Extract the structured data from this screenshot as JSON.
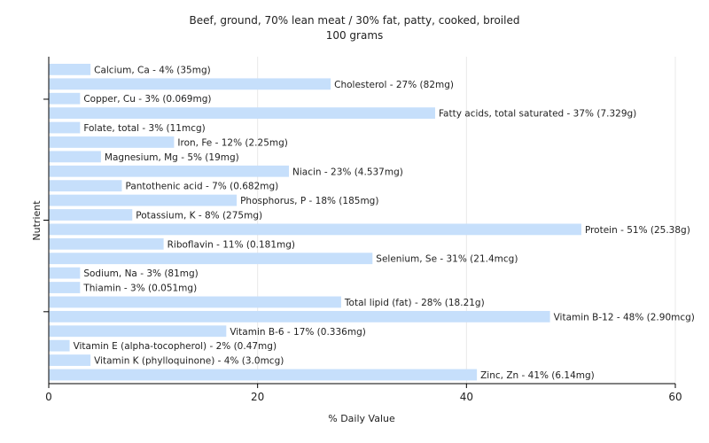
{
  "chart_data": {
    "type": "bar",
    "orientation": "horizontal",
    "title": "Beef, ground, 70% lean meat / 30% fat, patty, cooked, broiled",
    "subtitle": "100 grams",
    "xlabel": "% Daily Value",
    "ylabel": "Nutrient",
    "xlim": [
      0,
      60
    ],
    "xticks": [
      0,
      20,
      40,
      60
    ],
    "grid": true,
    "bar_color": "#c6dffb",
    "categories": [
      "Calcium, Ca",
      "Cholesterol",
      "Copper, Cu",
      "Fatty acids, total saturated",
      "Folate, total",
      "Iron, Fe",
      "Magnesium, Mg",
      "Niacin",
      "Pantothenic acid",
      "Phosphorus, P",
      "Potassium, K",
      "Protein",
      "Riboflavin",
      "Selenium, Se",
      "Sodium, Na",
      "Thiamin",
      "Total lipid (fat)",
      "Vitamin B-12",
      "Vitamin B-6",
      "Vitamin E (alpha-tocopherol)",
      "Vitamin K (phylloquinone)",
      "Zinc, Zn"
    ],
    "values": [
      4,
      27,
      3,
      37,
      3,
      12,
      5,
      23,
      7,
      18,
      8,
      51,
      11,
      31,
      3,
      3,
      28,
      48,
      17,
      2,
      4,
      41
    ],
    "labels": [
      "Calcium, Ca - 4% (35mg)",
      "Cholesterol - 27% (82mg)",
      "Copper, Cu - 3% (0.069mg)",
      "Fatty acids, total saturated - 37% (7.329g)",
      "Folate, total - 3% (11mcg)",
      "Iron, Fe - 12% (2.25mg)",
      "Magnesium, Mg - 5% (19mg)",
      "Niacin - 23% (4.537mg)",
      "Pantothenic acid - 7% (0.682mg)",
      "Phosphorus, P - 18% (185mg)",
      "Potassium, K - 8% (275mg)",
      "Protein - 51% (25.38g)",
      "Riboflavin - 11% (0.181mg)",
      "Selenium, Se - 31% (21.4mcg)",
      "Sodium, Na - 3% (81mg)",
      "Thiamin - 3% (0.051mg)",
      "Total lipid (fat) - 28% (18.21g)",
      "Vitamin B-12 - 48% (2.90mcg)",
      "Vitamin B-6 - 17% (0.336mg)",
      "Vitamin E (alpha-tocopherol) - 2% (0.47mg)",
      "Vitamin K (phylloquinone) - 4% (3.0mcg)",
      "Zinc, Zn - 41% (6.14mg)"
    ]
  }
}
